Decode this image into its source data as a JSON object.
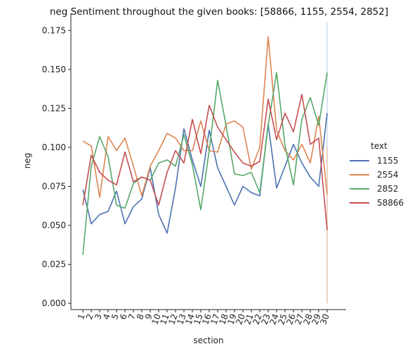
{
  "chart_data": {
    "type": "line",
    "title": "neg Sentiment throughout the given books: [58866, 1155, 2554, 2852]",
    "xlabel": "section",
    "ylabel": "neg",
    "ylim": [
      -0.004,
      0.186
    ],
    "yticks": [
      "0.000",
      "0.025",
      "0.050",
      "0.075",
      "0.100",
      "0.125",
      "0.150",
      "0.175"
    ],
    "ytick_values": [
      0.0,
      0.025,
      0.05,
      0.075,
      0.1,
      0.125,
      0.15,
      0.175
    ],
    "x": [
      "1",
      "2",
      "3",
      "4",
      "5",
      "6",
      "7",
      "8",
      "9",
      "10",
      "11",
      "12",
      "13",
      "14",
      "15",
      "16",
      "17",
      "18",
      "19",
      "20",
      "21",
      "22",
      "23",
      "24",
      "25",
      "26",
      "27",
      "28",
      "29",
      "30"
    ],
    "legend_title": "text",
    "legend_position": "right",
    "series": [
      {
        "name": "1155",
        "color": "#4c72b0",
        "values": [
          0.073,
          0.051,
          0.057,
          0.059,
          0.072,
          0.051,
          0.062,
          0.067,
          0.087,
          0.057,
          0.045,
          0.074,
          0.112,
          0.092,
          0.075,
          0.111,
          0.087,
          0.075,
          0.063,
          0.075,
          0.071,
          0.069,
          0.115,
          0.074,
          0.088,
          0.102,
          0.09,
          0.081,
          0.075,
          0.122
        ]
      },
      {
        "name": "2554",
        "color": "#dd8452",
        "values": [
          0.104,
          0.101,
          0.068,
          0.107,
          0.098,
          0.106,
          0.088,
          0.069,
          0.088,
          0.098,
          0.109,
          0.106,
          0.098,
          0.098,
          0.117,
          0.098,
          0.097,
          0.115,
          0.117,
          0.113,
          0.086,
          0.1,
          0.171,
          0.111,
          0.098,
          0.092,
          0.102,
          0.09,
          0.12,
          0.07
        ]
      },
      {
        "name": "2852",
        "color": "#55a868",
        "values": [
          0.031,
          0.088,
          0.107,
          0.094,
          0.063,
          0.061,
          0.077,
          0.081,
          0.079,
          0.09,
          0.092,
          0.088,
          0.108,
          0.089,
          0.06,
          0.098,
          0.143,
          0.114,
          0.083,
          0.082,
          0.084,
          0.071,
          0.114,
          0.148,
          0.101,
          0.076,
          0.118,
          0.132,
          0.114,
          0.148
        ]
      },
      {
        "name": "58866",
        "color": "#c44e52",
        "values": [
          0.063,
          0.095,
          0.084,
          0.079,
          0.076,
          0.097,
          0.078,
          0.081,
          0.079,
          0.063,
          0.084,
          0.098,
          0.09,
          0.118,
          0.096,
          0.127,
          0.113,
          0.105,
          0.097,
          0.09,
          0.088,
          0.091,
          0.131,
          0.105,
          0.122,
          0.11,
          0.134,
          0.102,
          0.106,
          0.047
        ]
      }
    ]
  }
}
